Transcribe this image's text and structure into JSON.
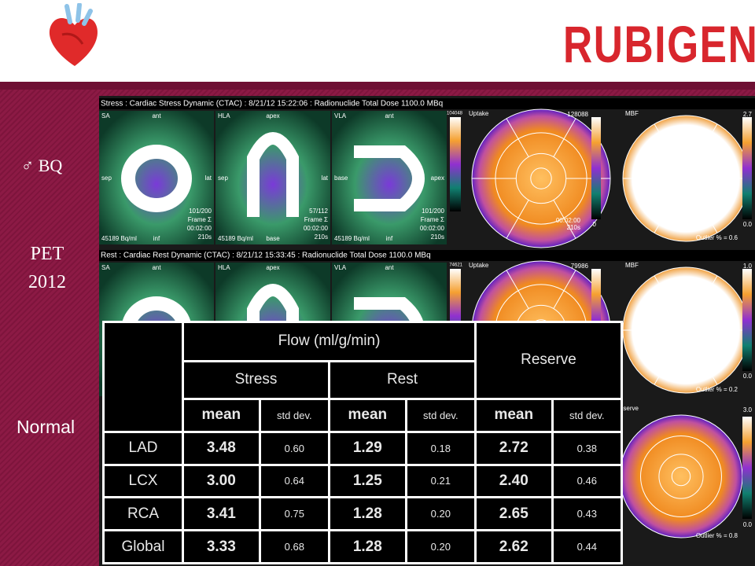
{
  "header": {
    "brand": "RUBIGEN"
  },
  "sidebar": {
    "patient": "♂ BQ",
    "modality": "PET",
    "year": "2012",
    "result": "Normal"
  },
  "stress": {
    "header": "Stress : Cardiac Stress Dynamic (CTAC) : 8/21/12 15:22:06 : Radionuclide Total Dose 1100.0 MBq",
    "frames": [
      "101/200",
      "57/112",
      "101/200"
    ],
    "frame": "Frame Σ",
    "time": "00:02:00",
    "duration": "210s",
    "activity": "45189 Bq/ml",
    "bar_max": "104048",
    "uptake_max": "128088",
    "uptake_min": "0",
    "mbf_max": "2.7",
    "mbf_min": "0.0",
    "outlier": "Outlier % = 0.6"
  },
  "rest": {
    "header": "Rest : Cardiac Rest Dynamic (CTAC) : 8/21/12 15:33:45 : Radionuclide Total Dose 1100.0 MBq",
    "bar_max": "74621",
    "uptake_max": "79986",
    "mbf_max": "1.0",
    "mbf_min": "0.0",
    "outlier": "Outlier % = 0.2"
  },
  "reserve": {
    "label": "Reserve",
    "max": "3.0",
    "min": "0.0",
    "outlier": "Outlier % = 0.8"
  },
  "views": [
    {
      "name": "SA",
      "top": "ant",
      "left": "sep",
      "right": "lat",
      "bottom": "inf"
    },
    {
      "name": "HLA",
      "top": "apex",
      "left": "sep",
      "right": "lat",
      "bottom": "base"
    },
    {
      "name": "VLA",
      "top": "ant",
      "left": "base",
      "right": "apex",
      "bottom": "inf"
    }
  ],
  "polar_labels": [
    "Uptake",
    "MBF"
  ],
  "table": {
    "group_header": "Flow (ml/g/min)",
    "reserve_header": "Reserve",
    "sub_headers": [
      "Stress",
      "Rest"
    ],
    "columns": [
      "mean",
      "std dev.",
      "mean",
      "std dev.",
      "mean",
      "std dev."
    ],
    "rows": [
      [
        "LAD",
        "3.48",
        "0.60",
        "1.29",
        "0.18",
        "2.72",
        "0.38"
      ],
      [
        "LCX",
        "3.00",
        "0.64",
        "1.25",
        "0.21",
        "2.40",
        "0.46"
      ],
      [
        "RCA",
        "3.41",
        "0.75",
        "1.28",
        "0.20",
        "2.65",
        "0.43"
      ],
      [
        "Global",
        "3.33",
        "0.68",
        "1.28",
        "0.20",
        "2.62",
        "0.44"
      ]
    ]
  }
}
